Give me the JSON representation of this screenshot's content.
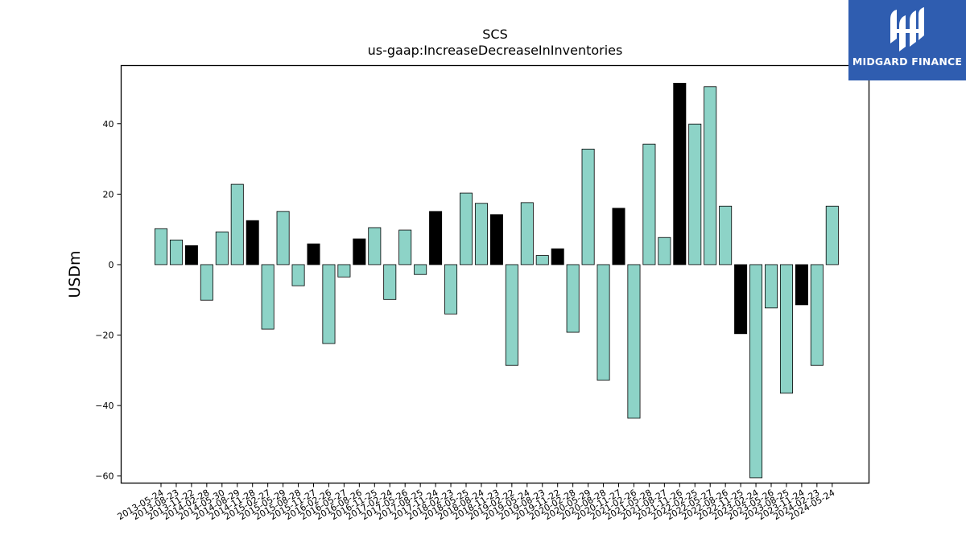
{
  "chart_data": {
    "type": "bar",
    "title": "SCS",
    "subtitle": "us-gaap:IncreaseDecreaseInInventories",
    "xlabel": "",
    "ylabel": "USDm",
    "ylim": [
      -62,
      56.5
    ],
    "yticks": [
      -60,
      -40,
      -20,
      0,
      20,
      40
    ],
    "grid": false,
    "colors": {
      "standard": "#8dd3c7",
      "highlight": "#000000",
      "edge": "#000000"
    },
    "categories": [
      "2013-05-24",
      "2013-08-23",
      "2013-11-22",
      "2014-02-28",
      "2014-05-30",
      "2014-08-29",
      "2014-11-28",
      "2015-02-27",
      "2015-05-29",
      "2015-08-28",
      "2015-11-27",
      "2016-02-26",
      "2016-05-27",
      "2016-08-26",
      "2016-11-25",
      "2017-02-24",
      "2017-05-26",
      "2017-08-25",
      "2017-11-24",
      "2018-02-23",
      "2018-05-25",
      "2018-08-24",
      "2018-11-23",
      "2019-02-22",
      "2019-05-24",
      "2019-08-23",
      "2019-11-22",
      "2020-02-28",
      "2020-05-29",
      "2020-08-28",
      "2020-11-27",
      "2021-02-26",
      "2021-05-28",
      "2021-08-27",
      "2021-11-26",
      "2022-02-25",
      "2022-05-27",
      "2022-08-26",
      "2022-11-25",
      "2023-02-24",
      "2023-05-26",
      "2023-08-25",
      "2023-11-24",
      "2024-02-23",
      "2024-05-24"
    ],
    "values": [
      10.2,
      7.0,
      5.4,
      -10.1,
      9.3,
      22.8,
      12.5,
      -18.3,
      15.1,
      -6.0,
      5.9,
      -22.4,
      -3.5,
      7.3,
      10.5,
      -9.9,
      9.8,
      -2.8,
      15.1,
      -14.0,
      20.3,
      17.4,
      14.2,
      -28.6,
      17.6,
      2.6,
      4.5,
      -19.2,
      32.8,
      -32.8,
      16.0,
      -43.6,
      34.2,
      7.7,
      51.5,
      39.9,
      50.5,
      16.6,
      -19.6,
      -60.5,
      -12.3,
      -36.5,
      -11.4,
      -28.6,
      16.6
    ],
    "highlight": [
      false,
      false,
      true,
      false,
      false,
      false,
      true,
      false,
      false,
      false,
      true,
      false,
      false,
      true,
      false,
      false,
      false,
      false,
      true,
      false,
      false,
      false,
      true,
      false,
      false,
      false,
      true,
      false,
      false,
      false,
      true,
      false,
      false,
      false,
      true,
      false,
      false,
      false,
      true,
      false,
      false,
      false,
      true,
      false,
      false
    ]
  },
  "branding": {
    "logo_text": "MIDGARD FINANCE",
    "background_color": "#2f5db0"
  }
}
